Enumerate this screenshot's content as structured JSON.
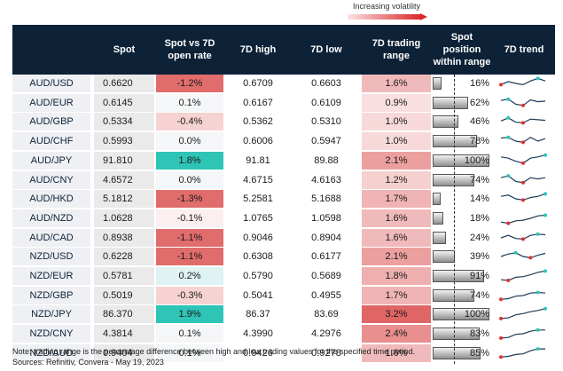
{
  "legend": {
    "label": "Increasing volatility"
  },
  "headers": [
    "",
    "Spot",
    "Spot vs 7D\nopen rate",
    "7D high",
    "7D low",
    "7D trading\nrange",
    "Spot\nposition\nwithin range",
    "7D trend"
  ],
  "rows": [
    {
      "pair": "AUD/USD",
      "spot": "0.6620",
      "vs_open": "-1.2%",
      "high": "0.6709",
      "low": "0.6603",
      "range": "1.6%",
      "position": "16%",
      "trend": [
        0.6,
        0.35,
        0.5,
        0.6,
        0.3,
        0.1,
        0.3
      ]
    },
    {
      "pair": "AUD/EUR",
      "spot": "0.6145",
      "vs_open": "0.1%",
      "high": "0.6167",
      "low": "0.6109",
      "range": "0.9%",
      "position": "62%",
      "trend": [
        0.3,
        0.2,
        0.6,
        0.7,
        0.25,
        0.4,
        0.35
      ]
    },
    {
      "pair": "AUD/GBP",
      "spot": "0.5334",
      "vs_open": "-0.4%",
      "high": "0.5362",
      "low": "0.5310",
      "range": "1.0%",
      "position": "46%",
      "trend": [
        0.45,
        0.2,
        0.55,
        0.6,
        0.3,
        0.35,
        0.4
      ]
    },
    {
      "pair": "AUD/CHF",
      "spot": "0.5993",
      "vs_open": "0.0%",
      "high": "0.6006",
      "low": "0.5947",
      "range": "1.0%",
      "position": "78%",
      "trend": [
        0.25,
        0.2,
        0.5,
        0.6,
        0.2,
        0.5,
        0.3
      ]
    },
    {
      "pair": "AUD/JPY",
      "spot": "91.810",
      "vs_open": "1.8%",
      "high": "91.81",
      "low": "89.88",
      "range": "2.1%",
      "position": "100%",
      "trend": [
        0.2,
        0.3,
        0.55,
        0.7,
        0.3,
        0.2,
        0.05
      ]
    },
    {
      "pair": "AUD/CNY",
      "spot": "4.6572",
      "vs_open": "0.0%",
      "high": "4.6715",
      "low": "4.6163",
      "range": "1.2%",
      "position": "74%",
      "trend": [
        0.3,
        0.15,
        0.6,
        0.7,
        0.3,
        0.4,
        0.3
      ]
    },
    {
      "pair": "AUD/HKD",
      "spot": "5.1812",
      "vs_open": "-1.3%",
      "high": "5.2581",
      "low": "5.1688",
      "range": "1.7%",
      "position": "14%",
      "trend": [
        0.3,
        0.2,
        0.5,
        0.6,
        0.4,
        0.3,
        0.1
      ]
    },
    {
      "pair": "AUD/NZD",
      "spot": "1.0628",
      "vs_open": "-0.1%",
      "high": "1.0765",
      "low": "1.0598",
      "range": "1.6%",
      "position": "18%",
      "trend": [
        0.8,
        0.9,
        0.7,
        0.65,
        0.5,
        0.3,
        0.25
      ]
    },
    {
      "pair": "AUD/CAD",
      "spot": "0.8938",
      "vs_open": "-1.1%",
      "high": "0.9046",
      "low": "0.8904",
      "range": "1.6%",
      "position": "24%",
      "trend": [
        0.5,
        0.3,
        0.55,
        0.6,
        0.3,
        0.2,
        0.25
      ]
    },
    {
      "pair": "NZD/USD",
      "spot": "0.6228",
      "vs_open": "-1.1%",
      "high": "0.6308",
      "low": "0.6177",
      "range": "2.1%",
      "position": "39%",
      "trend": [
        0.5,
        0.3,
        0.2,
        0.5,
        0.6,
        0.4,
        0.25
      ]
    },
    {
      "pair": "NZD/EUR",
      "spot": "0.5781",
      "vs_open": "0.2%",
      "high": "0.5790",
      "low": "0.5689",
      "range": "1.8%",
      "position": "91%",
      "trend": [
        0.8,
        0.85,
        0.6,
        0.55,
        0.4,
        0.2,
        0.1
      ]
    },
    {
      "pair": "NZD/GBP",
      "spot": "0.5019",
      "vs_open": "-0.3%",
      "high": "0.5041",
      "low": "0.4955",
      "range": "1.7%",
      "position": "74%",
      "trend": [
        0.8,
        0.75,
        0.55,
        0.5,
        0.3,
        0.25,
        0.3
      ]
    },
    {
      "pair": "NZD/JPY",
      "spot": "86.370",
      "vs_open": "1.9%",
      "high": "86.37",
      "low": "83.69",
      "range": "3.2%",
      "position": "100%",
      "trend": [
        0.85,
        0.8,
        0.55,
        0.45,
        0.3,
        0.2,
        0.05
      ]
    },
    {
      "pair": "NZD/CNY",
      "spot": "4.3814",
      "vs_open": "0.1%",
      "high": "4.3990",
      "low": "4.2976",
      "range": "2.4%",
      "position": "83%",
      "trend": [
        0.85,
        0.8,
        0.55,
        0.5,
        0.3,
        0.2,
        0.2
      ]
    },
    {
      "pair": "NZD/AUD",
      "spot": "0.9404",
      "vs_open": "0.1%",
      "high": "0.9426",
      "low": "0.9278",
      "range": "1.6%",
      "position": "85%",
      "trend": [
        0.8,
        0.75,
        0.6,
        0.55,
        0.3,
        0.15,
        0.15
      ]
    }
  ],
  "colors": {
    "header_bg": "#0d2137",
    "positive_strong": "#2ec4b6",
    "negative_strong": "#e06c6c",
    "trend_line": "#1f3b57",
    "trend_high": "#2ec4b6",
    "trend_low": "#e03030"
  },
  "footnote": {
    "line1": "Note: trading range is the percentage difference between high and low trading values for the specified time period.",
    "line2": "Sources: Refinitiv, Convera - May 19, 2023"
  }
}
